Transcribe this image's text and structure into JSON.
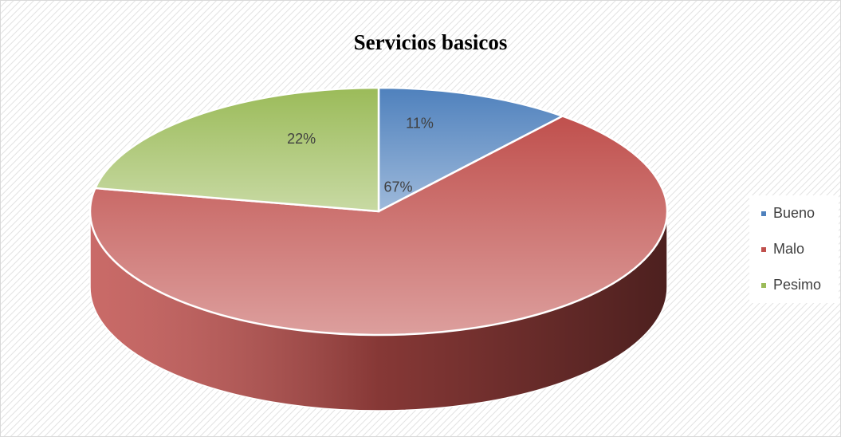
{
  "chart_data": {
    "type": "pie",
    "title": "Servicios basicos",
    "categories": [
      "Bueno",
      "Malo",
      "Pesimo"
    ],
    "values": [
      11,
      67,
      22
    ],
    "value_labels": [
      "11%",
      "67%",
      "22%"
    ],
    "colors": [
      "#4f81bd",
      "#c0504d",
      "#9bbb59"
    ],
    "legend": "right"
  }
}
